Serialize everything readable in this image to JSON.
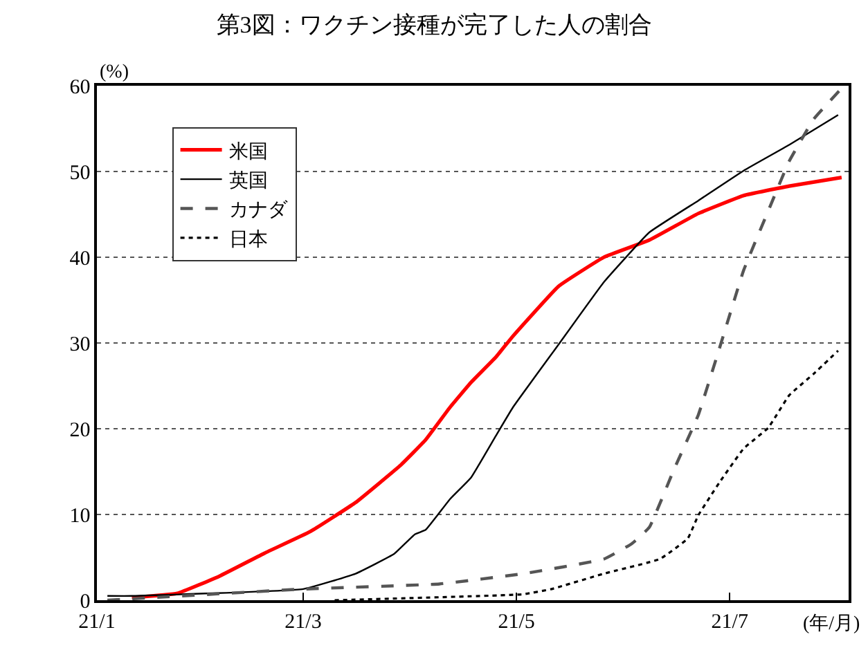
{
  "chart_data": {
    "type": "line",
    "title": "第3図：ワクチン接種が完了した人の割合",
    "ylabel": "(%)",
    "xlabel": "(年/月)",
    "xlim": [
      "--01-01",
      "--08-04"
    ],
    "xticks": [
      {
        "value": "--01-01",
        "label": "21/1"
      },
      {
        "value": "--03-01",
        "label": "21/3"
      },
      {
        "value": "--05-01",
        "label": "21/5"
      },
      {
        "value": "--07-01",
        "label": "21/7"
      }
    ],
    "ylim": [
      0,
      60
    ],
    "yticks": [
      0,
      10,
      20,
      30,
      40,
      50,
      60
    ],
    "grid": "y",
    "legend": "top left",
    "marker": "none",
    "series": [
      {
        "name": "米国",
        "color": "#ff0000",
        "line_style": "solid",
        "x": [
          "--01-11",
          "--01-24",
          "--02-05",
          "--02-18",
          "--03-03",
          "--03-16",
          "--03-29",
          "--04-05",
          "--04-12",
          "--04-18",
          "--04-25",
          "--04-30",
          "--05-13",
          "--05-26",
          "--06-08",
          "--06-22",
          "--07-05",
          "--07-18",
          "--08-02"
        ],
        "values": [
          0.3,
          0.8,
          2.8,
          5.5,
          8.0,
          11.4,
          15.8,
          18.7,
          22.5,
          25.4,
          28.3,
          30.8,
          36.6,
          40.0,
          42.0,
          45.1,
          47.2,
          48.3,
          49.3
        ]
      },
      {
        "name": "英国",
        "color": "#000000",
        "line_style": "solid",
        "x": [
          "--01-04",
          "--01-11",
          "--03-01",
          "--03-16",
          "--03-27",
          "--04-02",
          "--04-05",
          "--04-12",
          "--04-18",
          "--04-25",
          "--04-30",
          "--05-13",
          "--05-26",
          "--06-08",
          "--06-22",
          "--07-05",
          "--07-18",
          "--08-01"
        ],
        "values": [
          0.5,
          0.5,
          1.3,
          3.1,
          5.4,
          7.7,
          8.2,
          11.8,
          14.3,
          19.1,
          22.5,
          29.8,
          37.1,
          42.9,
          46.6,
          50.1,
          53.1,
          56.6
        ]
      },
      {
        "name": "カナダ",
        "color": "#555555",
        "line_style": "dashed",
        "x": [
          "--01-04",
          "--03-01",
          "--04-09",
          "--05-03",
          "--05-26",
          "--06-03",
          "--06-08",
          "--06-15",
          "--06-22",
          "--06-28",
          "--07-05",
          "--07-12",
          "--07-18",
          "--07-25",
          "--08-02"
        ],
        "values": [
          0,
          1.3,
          1.9,
          3.1,
          4.8,
          6.6,
          8.5,
          15.2,
          21.6,
          29.3,
          38.5,
          45.4,
          51.2,
          56.1,
          59.7
        ]
      },
      {
        "name": "日本",
        "color": "#000000",
        "line_style": "dotted",
        "x": [
          "--03-10",
          "--05-03",
          "--05-11",
          "--05-26",
          "--06-11",
          "--06-19",
          "--06-22",
          "--06-28",
          "--07-05",
          "--07-12",
          "--07-18",
          "--07-25",
          "--08-01"
        ],
        "values": [
          0,
          0.7,
          1.3,
          3.1,
          4.8,
          7.2,
          9.9,
          13.7,
          17.7,
          20.1,
          23.9,
          26.4,
          29.1
        ]
      }
    ]
  }
}
